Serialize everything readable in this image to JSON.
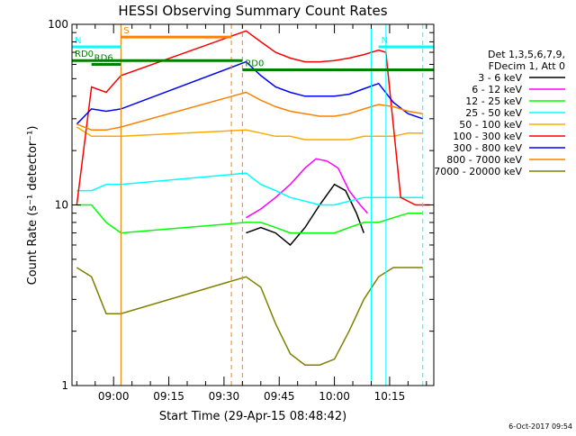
{
  "chart_data": {
    "type": "line",
    "title": "HESSI Observing Summary Count Rates",
    "xlabel": "Start Time (29-Apr-15 08:48:42)",
    "ylabel": "Count Rate (s⁻¹ detector⁻¹)",
    "yscale": "log",
    "ylim": [
      1,
      100
    ],
    "xlim": [
      "08:48:42",
      "10:27:00"
    ],
    "x_ticks": [
      "09:00",
      "09:15",
      "09:30",
      "09:45",
      "10:00",
      "10:15"
    ],
    "y_ticks": [
      "1",
      "10",
      "100"
    ],
    "footer_date": "6-Oct-2017 09:54",
    "legend": {
      "position": "right",
      "header": [
        "Det 1,3,5,6,7,9,",
        "FDecim 1, Att 0"
      ]
    },
    "markers": [
      {
        "label": "S",
        "color": "#ff8000",
        "start": "09:02",
        "end": "09:32",
        "level": 85
      },
      {
        "label": "N",
        "color": "#00ffff",
        "start": "08:48:42",
        "end": "09:02",
        "level": 75
      },
      {
        "label": "N",
        "color": "#00ffff",
        "start": "10:12",
        "end": "10:27",
        "level": 75
      },
      {
        "label": "RD0",
        "color": "#008000",
        "start": "08:48:42",
        "end": "09:35",
        "level": 63
      },
      {
        "label": "RD0",
        "color": "#008000",
        "start": "09:35",
        "end": "10:27",
        "level": 56
      },
      {
        "label": "RD6",
        "color": "#008000",
        "start": "08:54",
        "end": "09:02",
        "level": 60
      }
    ],
    "vertical_lines": [
      {
        "time": "09:02",
        "color": "#00ffff",
        "style": "solid"
      },
      {
        "time": "09:02",
        "color": "#ff8000",
        "style": "solid"
      },
      {
        "time": "09:32",
        "color": "#ff8000",
        "style": "dashed"
      },
      {
        "time": "09:35",
        "color": "#ff8000",
        "style": "dashed"
      },
      {
        "time": "10:10",
        "color": "#00ffff",
        "style": "solid"
      },
      {
        "time": "10:14",
        "color": "#00ffff",
        "style": "solid"
      },
      {
        "time": "10:24",
        "color": "#00ffff",
        "style": "dashed"
      }
    ],
    "series": [
      {
        "name": "3 - 6 keV",
        "color": "#000000",
        "points": [
          [
            "09:36",
            7
          ],
          [
            "09:40",
            7.5
          ],
          [
            "09:44",
            7
          ],
          [
            "09:48",
            6
          ],
          [
            "09:52",
            7.5
          ],
          [
            "09:56",
            10
          ],
          [
            "10:00",
            13
          ],
          [
            "10:03",
            12
          ],
          [
            "10:06",
            9
          ],
          [
            "10:08",
            7
          ]
        ]
      },
      {
        "name": "6 - 12 keV",
        "color": "#ff00ff",
        "points": [
          [
            "09:36",
            8.5
          ],
          [
            "09:40",
            9.5
          ],
          [
            "09:44",
            11
          ],
          [
            "09:48",
            13
          ],
          [
            "09:52",
            16
          ],
          [
            "09:55",
            18
          ],
          [
            "09:58",
            17.5
          ],
          [
            "10:01",
            16
          ],
          [
            "10:04",
            12
          ],
          [
            "10:07",
            10
          ],
          [
            "10:09",
            9
          ]
        ]
      },
      {
        "name": "12 - 25 keV",
        "color": "#00ff00",
        "points": [
          [
            "08:50",
            10
          ],
          [
            "08:54",
            10
          ],
          [
            "08:58",
            8
          ],
          [
            "09:02",
            7
          ],
          [
            "09:36",
            8
          ],
          [
            "09:40",
            8
          ],
          [
            "09:44",
            7.5
          ],
          [
            "09:48",
            7
          ],
          [
            "09:52",
            7
          ],
          [
            "09:56",
            7
          ],
          [
            "10:00",
            7
          ],
          [
            "10:04",
            7.5
          ],
          [
            "10:08",
            8
          ],
          [
            "10:12",
            8
          ],
          [
            "10:16",
            8.5
          ],
          [
            "10:20",
            9
          ],
          [
            "10:24",
            9
          ]
        ]
      },
      {
        "name": "25 - 50 keV",
        "color": "#00ffff",
        "points": [
          [
            "08:50",
            12
          ],
          [
            "08:54",
            12
          ],
          [
            "08:58",
            13
          ],
          [
            "09:02",
            13
          ],
          [
            "09:36",
            15
          ],
          [
            "09:40",
            13
          ],
          [
            "09:44",
            12
          ],
          [
            "09:48",
            11
          ],
          [
            "09:52",
            10.5
          ],
          [
            "09:56",
            10
          ],
          [
            "10:00",
            10
          ],
          [
            "10:04",
            10.5
          ],
          [
            "10:08",
            11
          ],
          [
            "10:12",
            11
          ],
          [
            "10:16",
            11
          ],
          [
            "10:20",
            11
          ],
          [
            "10:24",
            11
          ]
        ]
      },
      {
        "name": "50 - 100 keV",
        "color": "#ffaa00",
        "points": [
          [
            "08:50",
            27
          ],
          [
            "08:54",
            24
          ],
          [
            "08:58",
            24
          ],
          [
            "09:02",
            24
          ],
          [
            "09:36",
            26
          ],
          [
            "09:40",
            25
          ],
          [
            "09:44",
            24
          ],
          [
            "09:48",
            24
          ],
          [
            "09:52",
            23
          ],
          [
            "09:56",
            23
          ],
          [
            "10:00",
            23
          ],
          [
            "10:04",
            23
          ],
          [
            "10:08",
            24
          ],
          [
            "10:12",
            24
          ],
          [
            "10:16",
            24
          ],
          [
            "10:20",
            25
          ],
          [
            "10:24",
            25
          ]
        ]
      },
      {
        "name": "100 - 300 keV",
        "color": "#ff0000",
        "points": [
          [
            "08:50",
            10
          ],
          [
            "08:54",
            45
          ],
          [
            "08:58",
            42
          ],
          [
            "09:02",
            52
          ],
          [
            "09:36",
            92
          ],
          [
            "09:40",
            80
          ],
          [
            "09:44",
            70
          ],
          [
            "09:48",
            65
          ],
          [
            "09:52",
            62
          ],
          [
            "09:56",
            62
          ],
          [
            "10:00",
            63
          ],
          [
            "10:04",
            65
          ],
          [
            "10:08",
            68
          ],
          [
            "10:12",
            72
          ],
          [
            "10:14",
            70
          ],
          [
            "10:18",
            11
          ],
          [
            "10:22",
            10
          ],
          [
            "10:26",
            10
          ]
        ]
      },
      {
        "name": "300 - 800 keV",
        "color": "#0000ff",
        "points": [
          [
            "08:50",
            28
          ],
          [
            "08:54",
            34
          ],
          [
            "08:58",
            33
          ],
          [
            "09:02",
            34
          ],
          [
            "09:36",
            62
          ],
          [
            "09:40",
            52
          ],
          [
            "09:44",
            45
          ],
          [
            "09:48",
            42
          ],
          [
            "09:52",
            40
          ],
          [
            "09:56",
            40
          ],
          [
            "10:00",
            40
          ],
          [
            "10:04",
            41
          ],
          [
            "10:08",
            44
          ],
          [
            "10:12",
            47
          ],
          [
            "10:16",
            37
          ],
          [
            "10:20",
            32
          ],
          [
            "10:24",
            30
          ]
        ]
      },
      {
        "name": "800 - 7000 keV",
        "color": "#ff8000",
        "points": [
          [
            "08:50",
            28
          ],
          [
            "08:54",
            26
          ],
          [
            "08:58",
            26
          ],
          [
            "09:02",
            27
          ],
          [
            "09:36",
            42
          ],
          [
            "09:40",
            38
          ],
          [
            "09:44",
            35
          ],
          [
            "09:48",
            33
          ],
          [
            "09:52",
            32
          ],
          [
            "09:56",
            31
          ],
          [
            "10:00",
            31
          ],
          [
            "10:04",
            32
          ],
          [
            "10:08",
            34
          ],
          [
            "10:12",
            36
          ],
          [
            "10:16",
            35
          ],
          [
            "10:20",
            33
          ],
          [
            "10:24",
            32
          ]
        ]
      },
      {
        "name": "7000 - 20000 keV",
        "color": "#808000",
        "points": [
          [
            "08:50",
            4.5
          ],
          [
            "08:54",
            4
          ],
          [
            "08:58",
            2.5
          ],
          [
            "09:02",
            2.5
          ],
          [
            "09:36",
            4
          ],
          [
            "09:40",
            3.5
          ],
          [
            "09:44",
            2.2
          ],
          [
            "09:48",
            1.5
          ],
          [
            "09:52",
            1.3
          ],
          [
            "09:56",
            1.3
          ],
          [
            "10:00",
            1.4
          ],
          [
            "10:04",
            2
          ],
          [
            "10:08",
            3
          ],
          [
            "10:12",
            4
          ],
          [
            "10:16",
            4.5
          ],
          [
            "10:20",
            4.5
          ],
          [
            "10:24",
            4.5
          ]
        ]
      }
    ]
  }
}
